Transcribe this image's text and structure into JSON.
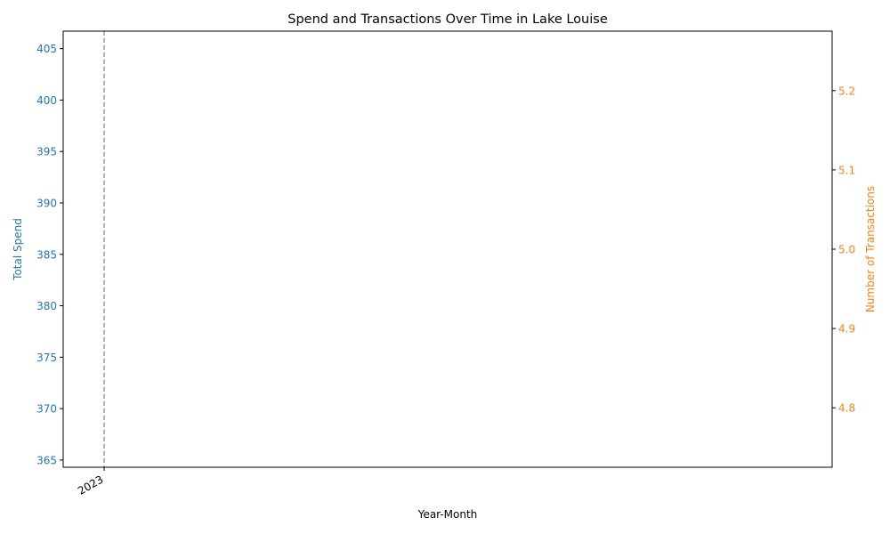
{
  "chart_data": {
    "type": "line",
    "title": "Spend and Transactions Over Time in Lake Louise",
    "xlabel": "Year-Month",
    "x_ticks": [
      "2023"
    ],
    "vline_at": "2023",
    "left_axis": {
      "label": "Total Spend",
      "ylim": [
        364.3,
        406.7
      ],
      "ticks": [
        365,
        370,
        375,
        380,
        385,
        390,
        395,
        400,
        405
      ],
      "color": "#1f77b4"
    },
    "right_axis": {
      "label": "Number of Transactions",
      "ylim": [
        4.725,
        5.275
      ],
      "ticks": [
        4.8,
        4.9,
        5.0,
        5.1,
        5.2
      ],
      "color": "#ff7f0e"
    },
    "series": [
      {
        "axis": "left",
        "color": "#1f77b4",
        "points": []
      },
      {
        "axis": "right",
        "color": "#ff7f0e",
        "points": []
      }
    ],
    "vline_color": "#808080",
    "grid": false
  }
}
